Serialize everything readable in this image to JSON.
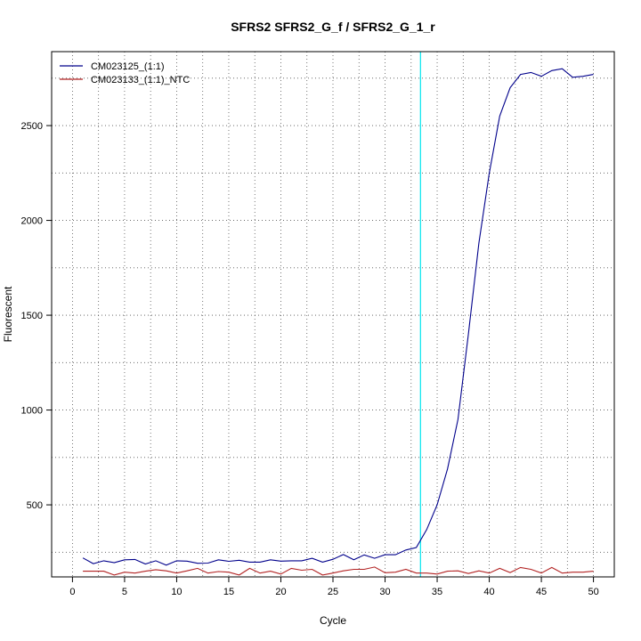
{
  "chart_data": {
    "type": "line",
    "title": "SFRS2  SFRS2_G_f / SFRS2_G_1_r",
    "xlabel": "Cycle",
    "ylabel": "Fluorescent",
    "xlim": [
      -2,
      52
    ],
    "ylim": [
      120,
      2890
    ],
    "xticks": [
      0,
      5,
      10,
      15,
      20,
      25,
      30,
      35,
      40,
      45,
      50
    ],
    "yticks": [
      500,
      1000,
      1500,
      2000,
      2500
    ],
    "grid": true,
    "legend_position": "top-left",
    "threshold_cycle": 33.4,
    "colors": {
      "threshold": "#00e5ee"
    },
    "x": [
      1,
      2,
      3,
      4,
      5,
      6,
      7,
      8,
      9,
      10,
      11,
      12,
      13,
      14,
      15,
      16,
      17,
      18,
      19,
      20,
      21,
      22,
      23,
      24,
      25,
      26,
      27,
      28,
      29,
      30,
      31,
      32,
      33,
      34,
      35,
      36,
      37,
      38,
      39,
      40,
      41,
      42,
      43,
      44,
      45,
      46,
      47,
      48,
      49,
      50
    ],
    "series": [
      {
        "name": "CM023125_(1:1)",
        "color": "#00008b",
        "values": [
          220,
          190,
          205,
          195,
          210,
          212,
          188,
          205,
          182,
          205,
          203,
          192,
          193,
          210,
          202,
          208,
          198,
          198,
          210,
          203,
          205,
          205,
          218,
          198,
          213,
          238,
          210,
          236,
          218,
          237,
          237,
          262,
          275,
          370,
          500,
          690,
          950,
          1400,
          1880,
          2250,
          2550,
          2700,
          2770,
          2780,
          2760,
          2790,
          2800,
          2755,
          2760,
          2770
        ]
      },
      {
        "name": "CM023133_(1:1)_NTC",
        "color": "#b22222",
        "values": [
          150,
          150,
          150,
          130,
          145,
          140,
          150,
          158,
          152,
          140,
          152,
          165,
          140,
          148,
          145,
          130,
          165,
          140,
          150,
          135,
          165,
          155,
          160,
          130,
          140,
          152,
          160,
          160,
          172,
          142,
          145,
          160,
          140,
          140,
          135,
          150,
          152,
          138,
          152,
          140,
          165,
          143,
          170,
          160,
          140,
          170,
          140,
          145,
          145,
          150
        ]
      }
    ]
  }
}
